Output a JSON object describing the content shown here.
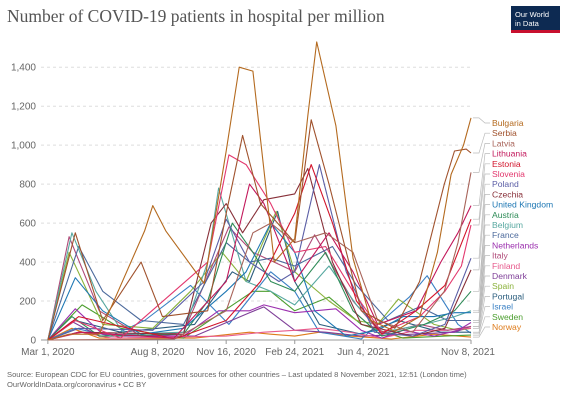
{
  "title": "Number of COVID-19 patients in hospital per million",
  "logo": {
    "line1": "Our World",
    "line2": "in Data"
  },
  "source_line1": "Source: European CDC for EU countries, government sources for other countries – Last updated 8 November 2021, 12:51 (London time)",
  "source_line2": "OurWorldInData.org/coronavirus • CC BY",
  "chart_data": {
    "type": "line",
    "title": "Number of COVID-19 patients in hospital per million",
    "xlabel": "",
    "ylabel": "",
    "x_ticks": [
      "Mar 1, 2020",
      "Aug 8, 2020",
      "Nov 16, 2020",
      "Feb 24, 2021",
      "Jun 4, 2021",
      "Nov 8, 2021"
    ],
    "y_ticks": [
      0,
      200,
      400,
      600,
      800,
      1000,
      1200,
      1400
    ],
    "ylim": [
      0,
      1550
    ],
    "grid": "horizontal dashed",
    "legend": "right, line end labels",
    "series": [
      {
        "name": "Bulgaria",
        "color": "#b46a1f",
        "x": [
          "2020-03-01",
          "2020-04-01",
          "2020-05-15",
          "2020-07-20",
          "2020-08-01",
          "2020-08-20",
          "2020-10-15",
          "2020-11-16",
          "2020-12-05",
          "2020-12-25",
          "2021-01-25",
          "2021-02-24",
          "2021-03-15",
          "2021-03-28",
          "2021-04-25",
          "2021-05-20",
          "2021-06-15",
          "2021-07-20",
          "2021-08-25",
          "2021-09-20",
          "2021-10-10",
          "2021-10-28",
          "2021-11-08"
        ],
        "values": [
          0,
          30,
          30,
          560,
          690,
          560,
          290,
          970,
          1400,
          1380,
          400,
          520,
          1150,
          1530,
          1100,
          420,
          100,
          45,
          120,
          450,
          850,
          1000,
          1140
        ]
      },
      {
        "name": "Serbia",
        "color": "#a0522d",
        "x": [
          "2020-03-01",
          "2020-04-10",
          "2020-05-20",
          "2020-07-15",
          "2020-08-15",
          "2020-10-20",
          "2020-11-16",
          "2020-12-10",
          "2021-01-05",
          "2021-02-24",
          "2021-03-20",
          "2021-04-15",
          "2021-06-01",
          "2021-07-20",
          "2021-08-25",
          "2021-09-30",
          "2021-10-15",
          "2021-11-01",
          "2021-11-08"
        ],
        "values": [
          0,
          550,
          100,
          400,
          120,
          150,
          650,
          1050,
          700,
          500,
          1130,
          800,
          150,
          60,
          300,
          800,
          970,
          980,
          960
        ]
      },
      {
        "name": "Latvia",
        "color": "#a8645a",
        "x": [
          "2020-03-01",
          "2020-09-01",
          "2020-11-16",
          "2020-12-25",
          "2021-01-20",
          "2021-02-24",
          "2021-04-10",
          "2021-05-20",
          "2021-06-25",
          "2021-08-15",
          "2021-09-30",
          "2021-10-20",
          "2021-11-08"
        ],
        "values": [
          0,
          5,
          150,
          550,
          600,
          500,
          550,
          450,
          100,
          40,
          250,
          500,
          860
        ]
      },
      {
        "name": "Lithuania",
        "color": "#c2185b",
        "x": [
          "2020-03-01",
          "2020-04-15",
          "2020-09-01",
          "2020-11-16",
          "2020-12-20",
          "2021-01-10",
          "2021-02-24",
          "2021-04-15",
          "2021-05-20",
          "2021-06-25",
          "2021-08-20",
          "2021-09-25",
          "2021-10-20",
          "2021-11-08"
        ],
        "values": [
          0,
          40,
          10,
          300,
          800,
          700,
          300,
          550,
          350,
          80,
          150,
          400,
          550,
          690
        ]
      },
      {
        "name": "Estonia",
        "color": "#d2152c",
        "x": [
          "2020-03-01",
          "2020-04-15",
          "2020-09-01",
          "2020-11-16",
          "2021-01-05",
          "2021-02-24",
          "2021-03-20",
          "2021-04-20",
          "2021-05-25",
          "2021-07-01",
          "2021-08-20",
          "2021-10-01",
          "2021-11-08"
        ],
        "values": [
          0,
          120,
          5,
          100,
          300,
          650,
          900,
          600,
          200,
          30,
          150,
          280,
          620
        ]
      },
      {
        "name": "Slovenia",
        "color": "#e3386e",
        "x": [
          "2020-03-01",
          "2020-04-10",
          "2020-06-15",
          "2020-10-20",
          "2020-11-20",
          "2020-12-15",
          "2021-01-20",
          "2021-02-24",
          "2021-04-10",
          "2021-05-20",
          "2021-07-01",
          "2021-08-25",
          "2021-10-01",
          "2021-10-25",
          "2021-11-08"
        ],
        "values": [
          0,
          100,
          10,
          400,
          950,
          900,
          700,
          450,
          480,
          250,
          40,
          120,
          250,
          380,
          590
        ]
      },
      {
        "name": "Poland",
        "color": "#5b5ea6",
        "x": [
          "2020-03-01",
          "2020-04-15",
          "2020-08-01",
          "2020-10-15",
          "2020-11-16",
          "2020-12-20",
          "2021-02-01",
          "2021-02-24",
          "2021-04-01",
          "2021-05-10",
          "2021-06-20",
          "2021-08-15",
          "2021-10-01",
          "2021-11-08"
        ],
        "values": [
          0,
          60,
          50,
          300,
          620,
          400,
          300,
          350,
          900,
          350,
          40,
          20,
          80,
          420
        ]
      },
      {
        "name": "Czechia",
        "color": "#883039",
        "x": [
          "2020-03-01",
          "2020-04-15",
          "2020-09-15",
          "2020-10-25",
          "2020-11-16",
          "2020-12-10",
          "2021-01-10",
          "2021-02-24",
          "2021-03-15",
          "2021-04-20",
          "2021-06-01",
          "2021-08-15",
          "2021-10-01",
          "2021-11-08"
        ],
        "values": [
          0,
          40,
          30,
          600,
          700,
          550,
          720,
          750,
          880,
          400,
          80,
          20,
          60,
          360
        ]
      },
      {
        "name": "United Kingdom",
        "color": "#1f78b4",
        "x": [
          "2020-03-01",
          "2020-04-10",
          "2020-05-20",
          "2020-07-15",
          "2020-09-15",
          "2020-11-16",
          "2020-12-15",
          "2021-01-20",
          "2021-02-24",
          "2021-03-25",
          "2021-05-10",
          "2021-06-25",
          "2021-08-01",
          "2021-09-15",
          "2021-10-15",
          "2021-11-08"
        ],
        "values": [
          0,
          320,
          150,
          30,
          60,
          250,
          350,
          600,
          450,
          150,
          20,
          50,
          120,
          120,
          140,
          140
        ]
      },
      {
        "name": "Austria",
        "color": "#2e8b57",
        "x": [
          "2020-03-01",
          "2020-04-05",
          "2020-05-15",
          "2020-09-15",
          "2020-10-20",
          "2020-11-25",
          "2020-12-25",
          "2021-01-20",
          "2021-02-24",
          "2021-04-10",
          "2021-05-20",
          "2021-07-01",
          "2021-09-01",
          "2021-10-15",
          "2021-11-08"
        ],
        "values": [
          0,
          120,
          20,
          30,
          200,
          600,
          450,
          300,
          250,
          450,
          150,
          20,
          80,
          150,
          250
        ]
      },
      {
        "name": "Belgium",
        "color": "#57a8a0",
        "x": [
          "2020-03-01",
          "2020-04-05",
          "2020-05-10",
          "2020-06-20",
          "2020-09-15",
          "2020-10-20",
          "2020-11-05",
          "2020-12-15",
          "2021-01-20",
          "2021-02-24",
          "2021-04-15",
          "2021-05-25",
          "2021-07-01",
          "2021-09-01",
          "2021-10-15",
          "2021-11-08"
        ],
        "values": [
          0,
          550,
          250,
          30,
          40,
          400,
          780,
          300,
          250,
          180,
          380,
          180,
          40,
          80,
          120,
          150
        ]
      },
      {
        "name": "France",
        "color": "#4c6a9c",
        "x": [
          "2020-03-01",
          "2020-04-15",
          "2020-05-20",
          "2020-07-15",
          "2020-09-15",
          "2020-11-16",
          "2020-12-20",
          "2021-01-20",
          "2021-02-24",
          "2021-04-20",
          "2021-05-25",
          "2021-07-10",
          "2021-08-25",
          "2021-10-05",
          "2021-11-08"
        ],
        "values": [
          0,
          480,
          250,
          100,
          80,
          500,
          400,
          420,
          380,
          480,
          280,
          100,
          170,
          100,
          100
        ]
      },
      {
        "name": "Netherlands",
        "color": "#9b2fae",
        "x": [
          "2020-03-01",
          "2020-04-10",
          "2020-05-20",
          "2020-09-15",
          "2020-11-05",
          "2020-12-20",
          "2021-01-10",
          "2021-02-24",
          "2021-04-25",
          "2021-06-01",
          "2021-07-01",
          "2021-08-01",
          "2021-09-15",
          "2021-10-20",
          "2021-11-08"
        ],
        "values": [
          0,
          160,
          30,
          20,
          150,
          150,
          180,
          140,
          160,
          50,
          10,
          50,
          20,
          50,
          90
        ]
      },
      {
        "name": "Italy",
        "color": "#b04a78",
        "x": [
          "2020-03-01",
          "2020-04-01",
          "2020-05-15",
          "2020-07-15",
          "2020-09-15",
          "2020-11-20",
          "2020-12-25",
          "2021-01-25",
          "2021-02-24",
          "2021-03-25",
          "2021-05-20",
          "2021-07-01",
          "2021-08-25",
          "2021-10-05",
          "2021-11-08"
        ],
        "values": [
          0,
          530,
          150,
          20,
          40,
          580,
          450,
          400,
          350,
          540,
          200,
          30,
          80,
          50,
          70
        ]
      },
      {
        "name": "Finland",
        "color": "#e75a8c",
        "x": [
          "2020-03-01",
          "2020-04-20",
          "2020-06-01",
          "2020-11-16",
          "2021-01-10",
          "2021-02-24",
          "2021-04-01",
          "2021-05-15",
          "2021-07-01",
          "2021-08-20",
          "2021-10-01",
          "2021-11-08"
        ],
        "values": [
          0,
          40,
          10,
          20,
          40,
          50,
          60,
          40,
          10,
          50,
          50,
          60
        ]
      },
      {
        "name": "Denmark",
        "color": "#7f3f98",
        "x": [
          "2020-03-01",
          "2020-04-05",
          "2020-05-15",
          "2020-10-01",
          "2020-12-20",
          "2021-01-10",
          "2021-02-24",
          "2021-04-10",
          "2021-06-01",
          "2021-08-15",
          "2021-10-15",
          "2021-11-08"
        ],
        "values": [
          0,
          95,
          20,
          20,
          140,
          170,
          50,
          40,
          20,
          30,
          40,
          70
        ]
      },
      {
        "name": "Spain",
        "color": "#8bb23c",
        "x": [
          "2020-03-01",
          "2020-04-01",
          "2020-05-20",
          "2020-08-01",
          "2020-09-25",
          "2020-11-10",
          "2020-12-15",
          "2021-01-28",
          "2021-02-24",
          "2021-04-15",
          "2021-05-25",
          "2021-06-25",
          "2021-07-25",
          "2021-09-15",
          "2021-10-20",
          "2021-11-08"
        ],
        "values": [
          0,
          450,
          80,
          60,
          250,
          450,
          300,
          660,
          350,
          200,
          100,
          80,
          210,
          80,
          50,
          60
        ]
      },
      {
        "name": "Portugal",
        "color": "#2b5d7d",
        "x": [
          "2020-03-01",
          "2020-04-10",
          "2020-06-15",
          "2020-10-01",
          "2020-11-25",
          "2020-12-20",
          "2021-01-30",
          "2021-02-24",
          "2021-04-01",
          "2021-06-01",
          "2021-07-25",
          "2021-09-25",
          "2021-11-08"
        ],
        "values": [
          0,
          100,
          40,
          80,
          350,
          300,
          660,
          300,
          80,
          30,
          100,
          40,
          40
        ]
      },
      {
        "name": "Israel",
        "color": "#3a80c4",
        "x": [
          "2020-03-01",
          "2020-04-10",
          "2020-06-01",
          "2020-07-20",
          "2020-09-25",
          "2020-11-20",
          "2021-01-20",
          "2021-02-24",
          "2021-04-01",
          "2021-06-01",
          "2021-08-10",
          "2021-09-05",
          "2021-10-20",
          "2021-11-08"
        ],
        "values": [
          0,
          60,
          20,
          100,
          280,
          80,
          350,
          250,
          40,
          5,
          220,
          330,
          80,
          35
        ]
      },
      {
        "name": "Sweden",
        "color": "#4c9e2f",
        "x": [
          "2020-03-01",
          "2020-04-20",
          "2020-06-15",
          "2020-09-15",
          "2020-12-25",
          "2021-01-20",
          "2021-02-24",
          "2021-04-15",
          "2021-06-01",
          "2021-08-01",
          "2021-10-01",
          "2021-11-08"
        ],
        "values": [
          0,
          180,
          60,
          10,
          250,
          250,
          150,
          220,
          80,
          10,
          20,
          25
        ]
      },
      {
        "name": "Norway",
        "color": "#de7b1b",
        "x": [
          "2020-03-01",
          "2020-04-05",
          "2020-05-15",
          "2020-10-01",
          "2020-12-20",
          "2021-01-20",
          "2021-02-24",
          "2021-04-01",
          "2021-05-15",
          "2021-07-15",
          "2021-09-15",
          "2021-11-08"
        ],
        "values": [
          0,
          60,
          10,
          10,
          40,
          30,
          20,
          40,
          20,
          5,
          30,
          15
        ]
      }
    ]
  }
}
